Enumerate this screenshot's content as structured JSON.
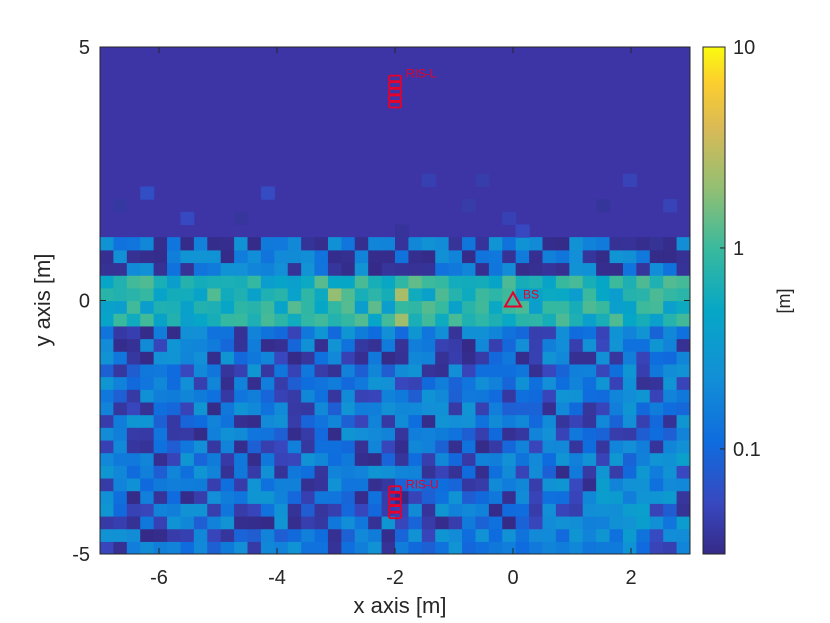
{
  "chart_data": {
    "type": "heatmap",
    "title": "",
    "xlabel": "x axis [m]",
    "ylabel": "y axis [m]",
    "xlim": [
      -7,
      3
    ],
    "ylim": [
      -5,
      5
    ],
    "x_ticks": [
      -6,
      -4,
      -2,
      0,
      2
    ],
    "x_tick_labels": [
      "-6",
      "-4",
      "-2",
      "0",
      "2"
    ],
    "y_ticks": [
      -5,
      0,
      5
    ],
    "y_tick_labels": [
      "-5",
      "0",
      "5"
    ],
    "colorbar": {
      "label": "[m]",
      "scale": "log",
      "range": [
        0.03,
        10
      ],
      "ticks": [
        0.1,
        1,
        10
      ],
      "tick_labels": [
        "0.1",
        "1",
        "10"
      ],
      "colormap": "parula"
    },
    "band_summary": [
      {
        "y_range": [
          1.3,
          5
        ],
        "typical_value": 0.03
      },
      {
        "y_range": [
          -0.5,
          0.5
        ],
        "typical_value": 0.5
      },
      {
        "y_range": [
          -5,
          -0.5
        ],
        "typical_value": 0.15
      }
    ],
    "markers": [
      {
        "name": "BS",
        "label": "BS",
        "shape": "triangle",
        "x": 0,
        "y": 0,
        "color": "#e8002a"
      },
      {
        "name": "RIS-L",
        "label": "RIS-L",
        "shape": "rect-stack",
        "x": -2,
        "y": 4.1,
        "color": "#e8002a"
      },
      {
        "name": "RIS-U",
        "label": "RIS-U",
        "shape": "rect-stack",
        "x": -2,
        "y": -4.0,
        "color": "#e8002a"
      }
    ],
    "grid": false,
    "legend": "none"
  }
}
